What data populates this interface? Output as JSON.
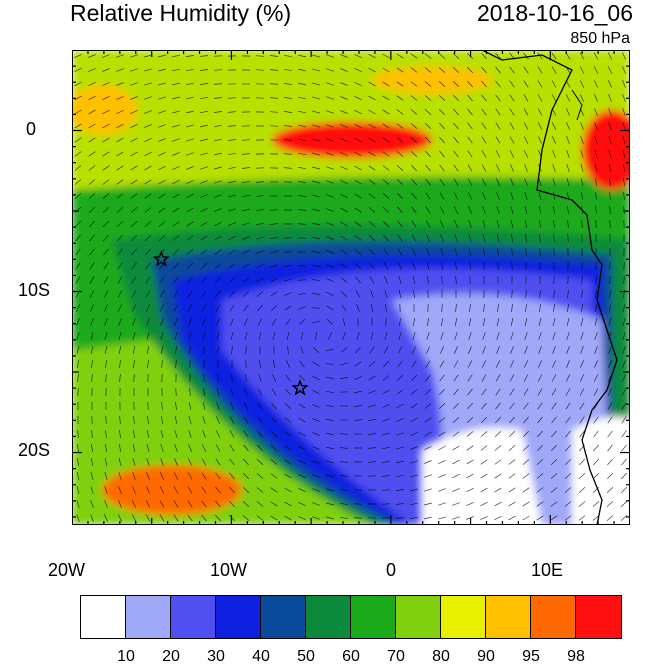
{
  "header": {
    "title": "Relative Humidity (%)",
    "datetime": "2018-10-16_06",
    "level": "850 hPa"
  },
  "map": {
    "lon_labels": [
      "20W",
      "10W",
      "0",
      "10E"
    ],
    "lat_labels": [
      "0",
      "10S",
      "20S"
    ],
    "lon_range": [
      -20,
      15
    ],
    "lat_range": [
      -24.5,
      5
    ],
    "markers": [
      {
        "name": "star-marker-1",
        "lon": -14.4,
        "lat": -8
      },
      {
        "name": "star-marker-2",
        "lon": -5.7,
        "lat": -16
      }
    ]
  },
  "colorbar": {
    "levels": [
      "10",
      "20",
      "30",
      "40",
      "50",
      "60",
      "70",
      "80",
      "90",
      "95",
      "98"
    ],
    "colors": [
      "#ffffff",
      "#a0a8f8",
      "#5050f0",
      "#1020e0",
      "#0a4a9a",
      "#0a8a3a",
      "#1aaa1a",
      "#80d010",
      "#e8f000",
      "#ffc000",
      "#ff6a00",
      "#ff1010"
    ]
  }
}
